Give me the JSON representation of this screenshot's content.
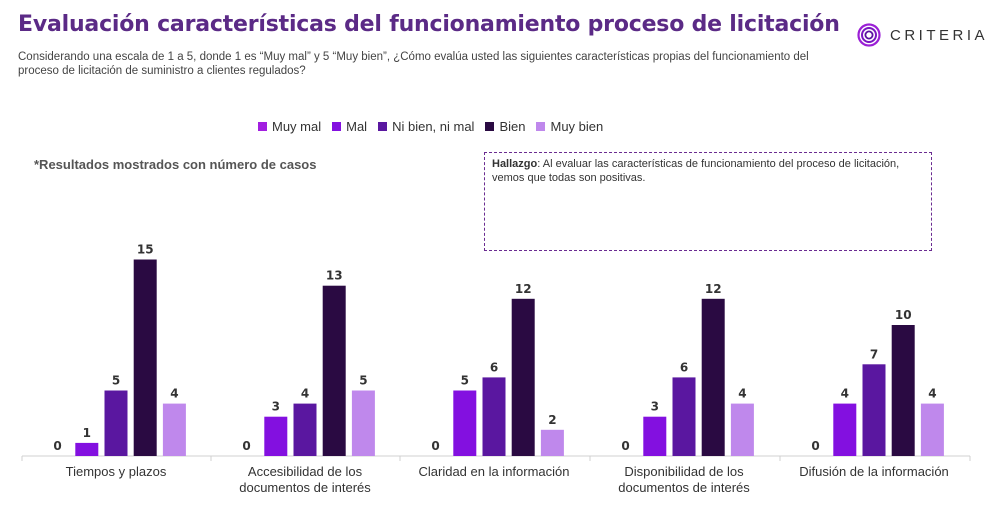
{
  "header": {
    "title": "Evaluación características del funcionamiento proceso de licitación",
    "subtitle": "Considerando una escala de 1 a 5, donde 1 es “Muy mal” y 5 “Muy bien”, ¿Cómo evalúa usted las siguientes características propias del funcionamiento del proceso de licitación de suministro a clientes regulados?"
  },
  "logo": {
    "text": "CRITERIA",
    "icon": "criteria-ring-logo"
  },
  "note": "*Resultados mostrados con número de casos",
  "finding": {
    "label": "Hallazgo",
    "text": ": Al evaluar las características de funcionamiento del proceso de licitación, vemos que todas son positivas."
  },
  "colors": {
    "Muy mal": "#a21fe0",
    "Mal": "#8310e0",
    "Ni bien, ni mal": "#5a17a0",
    "Bien": "#2a0a42",
    "Muy bien": "#bf88ec"
  },
  "chart_data": {
    "type": "bar",
    "categories": [
      [
        "Tiempos y plazos"
      ],
      [
        "Accesibilidad de los",
        "documentos de interés"
      ],
      [
        "Claridad en la información"
      ],
      [
        "Disponibilidad de los",
        "documentos de interés"
      ],
      [
        "Difusión de la información"
      ]
    ],
    "series": [
      {
        "name": "Muy mal",
        "values": [
          0,
          0,
          0,
          0,
          0
        ]
      },
      {
        "name": "Mal",
        "values": [
          1,
          3,
          5,
          3,
          4
        ]
      },
      {
        "name": "Ni bien, ni mal",
        "values": [
          5,
          4,
          6,
          6,
          7
        ]
      },
      {
        "name": "Bien",
        "values": [
          15,
          13,
          12,
          12,
          10
        ]
      },
      {
        "name": "Muy bien",
        "values": [
          4,
          5,
          2,
          4,
          4
        ]
      }
    ],
    "ylim": [
      0,
      16
    ],
    "grid": false,
    "legend": "top-center",
    "data_labels": true
  }
}
